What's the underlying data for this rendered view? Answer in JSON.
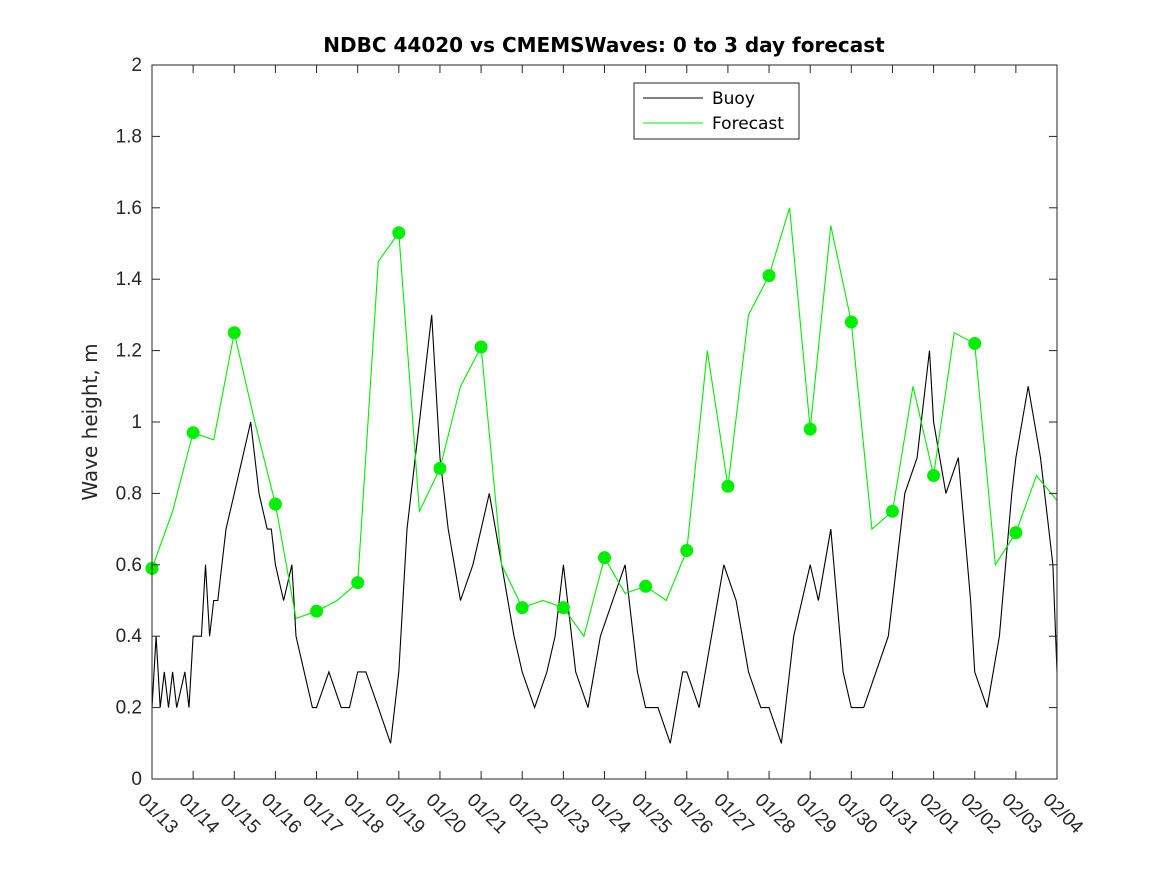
{
  "chart_data": {
    "type": "line",
    "title": "NDBC 44020 vs CMEMSWaves: 0 to 3 day forecast",
    "xlabel": "",
    "ylabel": "Wave height, m",
    "ylim": [
      0,
      2
    ],
    "yticks": [
      "0",
      "0.2",
      "0.4",
      "0.6",
      "0.8",
      "1",
      "1.2",
      "1.4",
      "1.6",
      "1.8",
      "2"
    ],
    "xlim": [
      0,
      22
    ],
    "xticks": [
      "01/13",
      "01/14",
      "01/15",
      "01/16",
      "01/17",
      "01/18",
      "01/19",
      "01/20",
      "01/21",
      "01/22",
      "01/23",
      "01/24",
      "01/25",
      "01/26",
      "01/27",
      "01/28",
      "01/29",
      "01/30",
      "01/31",
      "02/01",
      "02/02",
      "02/03",
      "02/04"
    ],
    "grid": false,
    "legend": {
      "position": "top-center",
      "entries": [
        "Buoy",
        "Forecast"
      ]
    },
    "colors": {
      "buoy": "#000000",
      "forecast": "#00ee00",
      "axes": "#262626"
    },
    "series": [
      {
        "name": "Buoy",
        "x": [
          0,
          0.1,
          0.2,
          0.3,
          0.4,
          0.5,
          0.6,
          0.8,
          0.9,
          1.0,
          1.2,
          1.3,
          1.4,
          1.5,
          1.6,
          1.8,
          2.0,
          2.2,
          2.4,
          2.6,
          2.8,
          2.9,
          3.0,
          3.2,
          3.4,
          3.5,
          3.7,
          3.9,
          4.0,
          4.3,
          4.6,
          4.8,
          5.0,
          5.2,
          5.5,
          5.8,
          6.0,
          6.2,
          6.5,
          6.8,
          7.0,
          7.2,
          7.5,
          7.8,
          8.0,
          8.2,
          8.5,
          8.8,
          9.0,
          9.3,
          9.6,
          9.8,
          10.0,
          10.3,
          10.6,
          10.9,
          11.2,
          11.5,
          11.8,
          12.0,
          12.3,
          12.6,
          12.9,
          13.0,
          13.3,
          13.6,
          13.9,
          14.2,
          14.5,
          14.8,
          15.0,
          15.3,
          15.6,
          15.8,
          16.0,
          16.2,
          16.5,
          16.8,
          17.0,
          17.3,
          17.6,
          17.9,
          18.0,
          18.3,
          18.6,
          18.9,
          19.0,
          19.3,
          19.6,
          19.9,
          20.0,
          20.3,
          20.6,
          20.9,
          21.0,
          21.3,
          21.6,
          21.9,
          22.0
        ],
        "values": [
          0.2,
          0.4,
          0.2,
          0.3,
          0.2,
          0.3,
          0.2,
          0.3,
          0.2,
          0.4,
          0.4,
          0.6,
          0.4,
          0.5,
          0.5,
          0.7,
          0.8,
          0.9,
          1.0,
          0.8,
          0.7,
          0.7,
          0.6,
          0.5,
          0.6,
          0.4,
          0.3,
          0.2,
          0.2,
          0.3,
          0.2,
          0.2,
          0.3,
          0.3,
          0.2,
          0.1,
          0.3,
          0.7,
          1.0,
          1.3,
          0.9,
          0.7,
          0.5,
          0.6,
          0.7,
          0.8,
          0.6,
          0.4,
          0.3,
          0.2,
          0.3,
          0.4,
          0.6,
          0.3,
          0.2,
          0.4,
          0.5,
          0.6,
          0.3,
          0.2,
          0.2,
          0.1,
          0.3,
          0.3,
          0.2,
          0.4,
          0.6,
          0.5,
          0.3,
          0.2,
          0.2,
          0.1,
          0.4,
          0.5,
          0.6,
          0.5,
          0.7,
          0.3,
          0.2,
          0.2,
          0.3,
          0.4,
          0.5,
          0.8,
          0.9,
          1.2,
          1.0,
          0.8,
          0.9,
          0.5,
          0.3,
          0.2,
          0.4,
          0.8,
          0.9,
          1.1,
          0.9,
          0.6,
          0.3
        ]
      },
      {
        "name": "Forecast",
        "x": [
          0,
          0.5,
          1.0,
          1.5,
          2.0,
          2.5,
          3.0,
          3.5,
          4.0,
          4.5,
          5.0,
          5.5,
          6.0,
          6.5,
          7.0,
          7.5,
          8.0,
          8.5,
          9.0,
          9.5,
          10.0,
          10.5,
          11.0,
          11.5,
          12.0,
          12.5,
          13.0,
          13.5,
          14.0,
          14.5,
          15.0,
          15.5,
          16.0,
          16.5,
          17.0,
          17.5,
          18.0,
          18.5,
          19.0,
          19.5,
          20.0,
          20.5,
          21.0,
          21.5,
          22.0
        ],
        "values": [
          0.59,
          0.75,
          0.97,
          0.95,
          1.25,
          1.0,
          0.77,
          0.45,
          0.47,
          0.5,
          0.55,
          1.45,
          1.53,
          0.75,
          0.87,
          1.1,
          1.21,
          0.6,
          0.48,
          0.5,
          0.48,
          0.4,
          0.62,
          0.52,
          0.54,
          0.5,
          0.64,
          1.2,
          0.82,
          1.3,
          1.41,
          1.6,
          0.98,
          1.55,
          1.28,
          0.7,
          0.75,
          1.1,
          0.85,
          1.25,
          1.22,
          0.6,
          0.69,
          0.85,
          0.78
        ]
      },
      {
        "name": "Forecast (daily start)",
        "x": [
          0,
          1,
          2,
          3,
          4,
          5,
          6,
          7,
          8,
          9,
          10,
          11,
          12,
          13,
          14,
          15,
          16,
          17,
          18,
          19,
          20,
          21
        ],
        "values": [
          0.59,
          0.97,
          1.25,
          0.77,
          0.47,
          0.55,
          1.53,
          0.87,
          1.21,
          0.48,
          0.48,
          0.62,
          0.54,
          0.64,
          0.82,
          1.41,
          0.98,
          1.28,
          0.75,
          0.85,
          1.22,
          0.69
        ]
      }
    ]
  }
}
